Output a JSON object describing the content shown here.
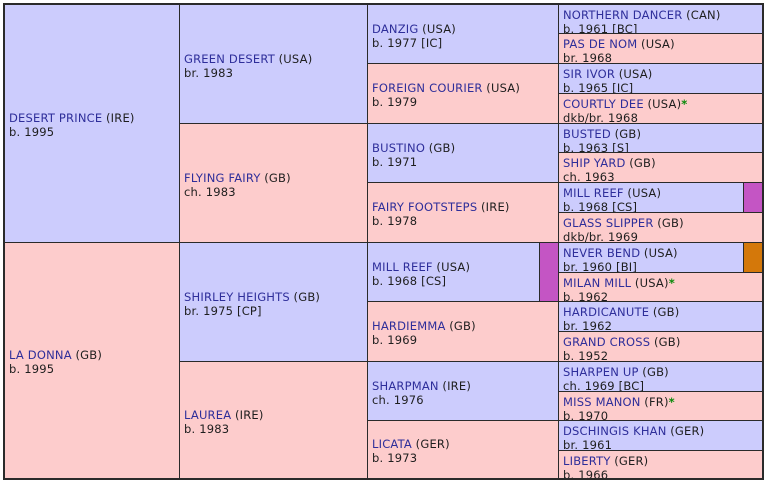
{
  "horses": {
    "g1_0": {
      "name": "DESERT PRINCE",
      "origin": "(IRE)",
      "details": "b. 1995"
    },
    "g1_1": {
      "name": "LA DONNA",
      "origin": "(GB)",
      "details": "b. 1995"
    },
    "g2_0": {
      "name": "GREEN DESERT",
      "origin": "(USA)",
      "details": "br. 1983"
    },
    "g2_1": {
      "name": "FLYING FAIRY",
      "origin": "(GB)",
      "details": "ch. 1983"
    },
    "g2_2": {
      "name": "SHIRLEY HEIGHTS",
      "origin": "(GB)",
      "details": "br. 1975 [CP]"
    },
    "g2_3": {
      "name": "LAUREA",
      "origin": "(IRE)",
      "details": "b. 1983"
    },
    "g3_0": {
      "name": "DANZIG",
      "origin": "(USA)",
      "details": "b. 1977 [IC]"
    },
    "g3_1": {
      "name": "FOREIGN COURIER",
      "origin": "(USA)",
      "details": "b. 1979"
    },
    "g3_2": {
      "name": "BUSTINO",
      "origin": "(GB)",
      "details": "b. 1971"
    },
    "g3_3": {
      "name": "FAIRY FOOTSTEPS",
      "origin": "(IRE)",
      "details": "b. 1978"
    },
    "g3_4": {
      "name": "MILL REEF",
      "origin": "(USA)",
      "details": "b. 1968 [CS]"
    },
    "g3_5": {
      "name": "HARDIEMMA",
      "origin": "(GB)",
      "details": "b. 1969"
    },
    "g3_6": {
      "name": "SHARPMAN",
      "origin": "(IRE)",
      "details": "ch. 1976"
    },
    "g3_7": {
      "name": "LICATA",
      "origin": "(GER)",
      "details": "b. 1973"
    },
    "g4_0": {
      "name": "NORTHERN DANCER",
      "origin": "(CAN)",
      "details": "b. 1961 [BC]"
    },
    "g4_1": {
      "name": "PAS DE NOM",
      "origin": "(USA)",
      "details": "br. 1968"
    },
    "g4_2": {
      "name": "SIR IVOR",
      "origin": "(USA)",
      "details": "b. 1965 [IC]"
    },
    "g4_3": {
      "name": "COURTLY DEE",
      "origin": "(USA)",
      "star": "*",
      "details": "dkb/br. 1968"
    },
    "g4_4": {
      "name": "BUSTED",
      "origin": "(GB)",
      "details": "b. 1963 [S]"
    },
    "g4_5": {
      "name": "SHIP YARD",
      "origin": "(GB)",
      "details": "ch. 1963"
    },
    "g4_6": {
      "name": "MILL REEF",
      "origin": "(USA)",
      "details": "b. 1968 [CS]"
    },
    "g4_7": {
      "name": "GLASS SLIPPER",
      "origin": "(GB)",
      "details": "dkb/br. 1969"
    },
    "g4_8": {
      "name": "NEVER BEND",
      "origin": "(USA)",
      "details": "br. 1960 [BI]"
    },
    "g4_9": {
      "name": "MILAN MILL",
      "origin": "(USA)",
      "star": "*",
      "details": "b. 1962"
    },
    "g4_10": {
      "name": "HARDICANUTE",
      "origin": "(GB)",
      "details": "br. 1962"
    },
    "g4_11": {
      "name": "GRAND CROSS",
      "origin": "(GB)",
      "details": "b. 1952"
    },
    "g4_12": {
      "name": "SHARPEN UP",
      "origin": "(GB)",
      "details": "ch. 1969 [BC]"
    },
    "g4_13": {
      "name": "MISS MANON",
      "origin": "(FR)",
      "star": "*",
      "details": "b. 1970"
    },
    "g4_14": {
      "name": "DSCHINGIS KHAN",
      "origin": "(GER)",
      "details": "br. 1961"
    },
    "g4_15": {
      "name": "LIBERTY",
      "origin": "(GER)",
      "details": "b. 1966"
    }
  },
  "colors": {
    "sire_bg": "#ccccfd",
    "dam_bg": "#fdcccc",
    "name_link": "#2e2e9a",
    "star": "#0a8a0a",
    "inbreeding_mill_reef": "#c455c4",
    "inbreeding_never_bend": "#d4780a"
  }
}
